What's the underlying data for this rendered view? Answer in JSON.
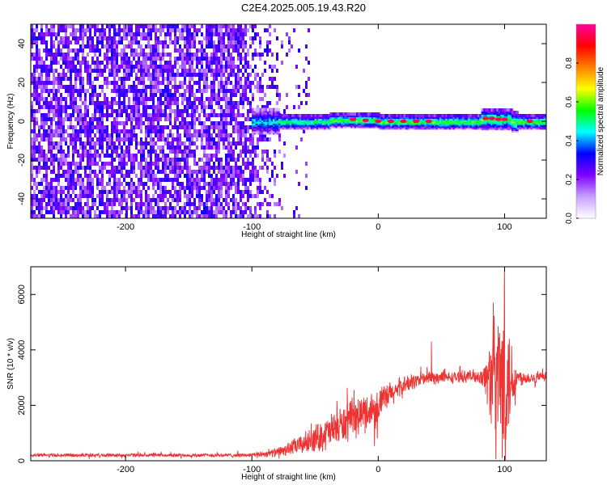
{
  "title": "C2E4.2025.005.19.43.R20",
  "chart_data": [
    {
      "type": "heatmap",
      "xlabel": "Height of straight line (km)",
      "ylabel": "Frequency (Hz)",
      "xlim": [
        -275,
        133
      ],
      "ylim": [
        -50,
        50
      ],
      "x_ticks": [
        -200,
        -100,
        0,
        100
      ],
      "y_ticks": [
        -40,
        -20,
        0,
        20,
        40
      ],
      "noise_region_x": [
        -275,
        -75
      ],
      "signal_band": {
        "x_start": -100,
        "x_end": 133,
        "center_frequency_hz": 0,
        "peak_points": [
          {
            "x": -20,
            "y": 1
          },
          {
            "x": -10,
            "y": 0.5
          },
          {
            "x": 0,
            "y": 0
          },
          {
            "x": 10,
            "y": 0
          },
          {
            "x": 20,
            "y": 0
          },
          {
            "x": 30,
            "y": 0
          },
          {
            "x": 40,
            "y": 0
          },
          {
            "x": 85,
            "y": 1.5
          },
          {
            "x": 90,
            "y": 1.5
          },
          {
            "x": 95,
            "y": 1
          },
          {
            "x": 100,
            "y": 1
          },
          {
            "x": 120,
            "y": 0
          }
        ]
      },
      "colorbar": {
        "label": "Normalized spectral amplitude",
        "range": [
          0,
          1
        ],
        "ticks": [
          "0.0",
          "0.2",
          "0.4",
          "0.6",
          "0.8"
        ],
        "colors": [
          "#ffffff",
          "#c8a0ff",
          "#8000ff",
          "#0000ff",
          "#00ffff",
          "#00ff00",
          "#ffff00",
          "#ff8000",
          "#ff0000",
          "#ff00a0"
        ]
      }
    },
    {
      "type": "line",
      "xlabel": "Height of straight line (km)",
      "ylabel": "SNR (10 * v/v)",
      "xlim": [
        -275,
        133
      ],
      "ylim": [
        0,
        7000
      ],
      "x_ticks": [
        -200,
        -100,
        0,
        100
      ],
      "y_ticks": [
        0,
        2000,
        4000,
        6000
      ],
      "color": "#ee3333",
      "series": [
        {
          "x": [
            -275,
            -200,
            -150,
            -100,
            -80,
            -60,
            -40,
            -20,
            0,
            10,
            20,
            30,
            40,
            50,
            60,
            70,
            80,
            85,
            90,
            95,
            100,
            105,
            110,
            120,
            133
          ],
          "y": [
            200,
            200,
            200,
            200,
            300,
            600,
            1000,
            1500,
            2000,
            2400,
            2700,
            2900,
            3000,
            3000,
            3000,
            3050,
            3050,
            3000,
            3000,
            3000,
            3000,
            3000,
            3000,
            3000,
            3000
          ],
          "noise": [
            60,
            60,
            60,
            70,
            150,
            350,
            600,
            700,
            600,
            450,
            350,
            250,
            250,
            200,
            200,
            200,
            250,
            600,
            1900,
            2300,
            3000,
            1500,
            300,
            200,
            200
          ],
          "spikes": [
            {
              "x": 42,
              "y": 4300
            },
            {
              "x": 91,
              "y": 5700
            },
            {
              "x": 98,
              "y": 100
            },
            {
              "x": 100,
              "y": 6900
            }
          ]
        }
      ]
    }
  ]
}
